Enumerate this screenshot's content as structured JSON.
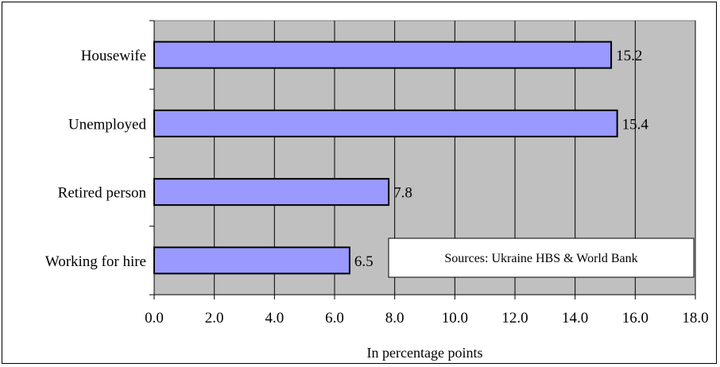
{
  "chart_data": {
    "type": "bar",
    "orientation": "horizontal",
    "categories": [
      "Housewife",
      "Unemployed",
      "Retired person",
      "Working for hire"
    ],
    "values": [
      15.2,
      15.4,
      7.8,
      6.5
    ],
    "value_labels": [
      "15.2",
      "15.4",
      "7.8",
      "6.5"
    ],
    "xlabel": "In percentage points",
    "xlim": [
      0,
      18
    ],
    "x_ticks": [
      "0.0",
      "2.0",
      "4.0",
      "6.0",
      "8.0",
      "10.0",
      "12.0",
      "14.0",
      "16.0",
      "18.0"
    ],
    "grid": true,
    "annotation": "Sources: Ukraine HBS & World Bank",
    "colors": {
      "bar_fill": "#9999ff",
      "bar_stroke": "#000000",
      "plot_bg": "#c0c0c0",
      "gridline": "#000000"
    }
  }
}
